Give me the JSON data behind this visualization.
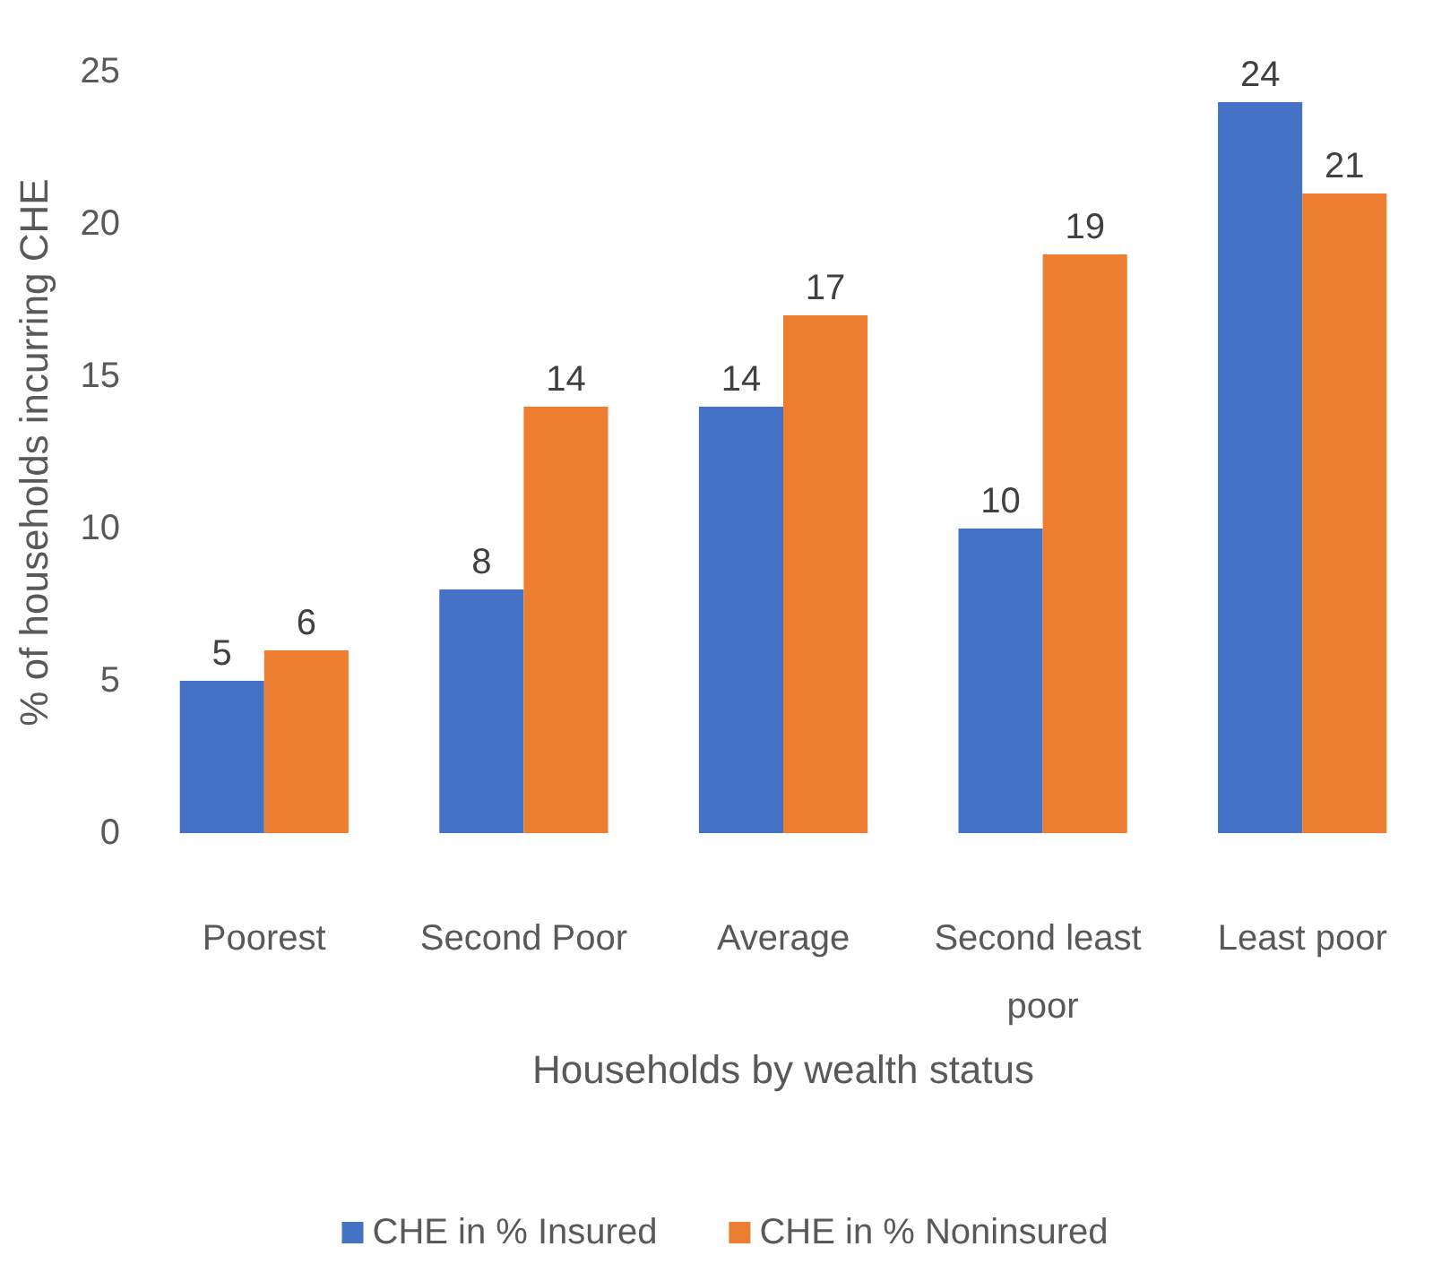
{
  "chart_data": {
    "type": "bar",
    "xlabel": "Households by wealth status",
    "ylabel": "% of households incurring CHE",
    "categories": [
      "Poorest",
      "Second Poor",
      "Average",
      "Second least poor",
      "Least poor"
    ],
    "series": [
      {
        "name": "CHE in % Insured",
        "color": "#4472c4",
        "values": [
          5,
          8,
          14,
          10,
          24
        ]
      },
      {
        "name": "CHE in % Noninsured",
        "color": "#ed7d31",
        "values": [
          6,
          14,
          17,
          19,
          21
        ]
      }
    ],
    "ylim": [
      0,
      25
    ],
    "yticks": [
      0,
      5,
      10,
      15,
      20,
      25
    ],
    "grid": false,
    "legend": "bottom",
    "data_labels": true
  }
}
